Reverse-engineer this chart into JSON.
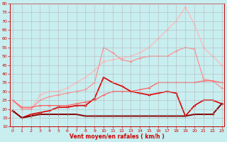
{
  "x": [
    0,
    1,
    2,
    3,
    4,
    5,
    6,
    7,
    8,
    9,
    10,
    11,
    12,
    13,
    14,
    15,
    16,
    17,
    18,
    19,
    20,
    21,
    22,
    23
  ],
  "line_lightest": [
    25,
    21,
    20,
    28,
    30,
    30,
    32,
    35,
    38,
    42,
    47,
    48,
    49,
    50,
    52,
    55,
    60,
    65,
    70,
    78,
    68,
    55,
    50,
    45
  ],
  "line_light": [
    25,
    20,
    20,
    25,
    27,
    28,
    29,
    30,
    31,
    35,
    55,
    52,
    48,
    47,
    49,
    50,
    50,
    50,
    53,
    55,
    54,
    37,
    36,
    32
  ],
  "line_med": [
    25,
    21,
    21,
    22,
    22,
    22,
    22,
    23,
    24,
    25,
    28,
    30,
    30,
    30,
    31,
    32,
    35,
    35,
    35,
    35,
    35,
    36,
    36,
    35
  ],
  "line_dark": [
    19,
    15,
    17,
    18,
    19,
    21,
    21,
    22,
    22,
    26,
    38,
    35,
    33,
    30,
    29,
    28,
    29,
    30,
    29,
    16,
    22,
    25,
    25,
    23
  ],
  "line_darkest": [
    19,
    15,
    16,
    17,
    17,
    17,
    17,
    17,
    16,
    16,
    16,
    16,
    16,
    16,
    16,
    16,
    16,
    16,
    16,
    16,
    17,
    17,
    17,
    23
  ],
  "bg_color": "#c8eef0",
  "grid_color": "#b8b8b8",
  "color_lightest": "#ffb8b8",
  "color_light": "#ff9090",
  "color_med": "#ff6060",
  "color_dark": "#dd0000",
  "color_darkest": "#880000",
  "xlabel": "Vent moyen/en rafales ( km/h )",
  "ylim": [
    10,
    80
  ],
  "yticks": [
    10,
    15,
    20,
    25,
    30,
    35,
    40,
    45,
    50,
    55,
    60,
    65,
    70,
    75,
    80
  ],
  "xticks": [
    0,
    1,
    2,
    3,
    4,
    5,
    6,
    7,
    8,
    9,
    10,
    11,
    12,
    13,
    14,
    15,
    16,
    17,
    18,
    19,
    20,
    21,
    22,
    23
  ]
}
